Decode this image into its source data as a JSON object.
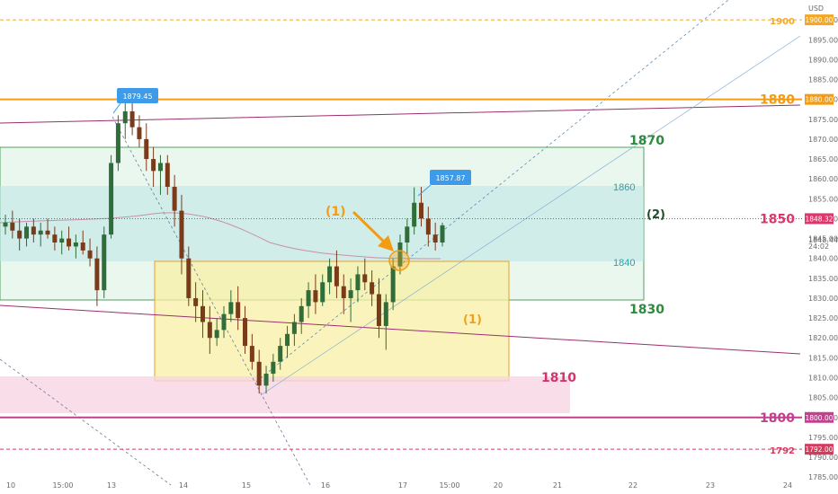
{
  "chart_data": {
    "type": "candlestick",
    "currency": "USD",
    "ylim": [
      1783,
      1905
    ],
    "y_ticks": [
      1785,
      1790,
      1795,
      1800,
      1805,
      1810,
      1815,
      1820,
      1825,
      1830,
      1835,
      1840,
      1845,
      1850,
      1855,
      1860,
      1865,
      1870,
      1875,
      1880,
      1885,
      1890,
      1895,
      1900
    ],
    "x_ticks": [
      "10",
      "15:00",
      "13",
      "14",
      "15",
      "16",
      "17",
      "15:00",
      "20",
      "21",
      "22",
      "23",
      "24"
    ],
    "current_price": "1848.32",
    "countdown": "24:02",
    "price_tag_muted": "1848.44",
    "callouts": [
      "1879.45",
      "1857.87"
    ],
    "levels": [
      {
        "value": 1900,
        "label": "1900",
        "tag": "1900.00",
        "color": "#f5a623",
        "style": "dashed"
      },
      {
        "value": 1880,
        "label": "1880",
        "tag": "1880.00",
        "color": "#f39c12",
        "style": "solid"
      },
      {
        "value": 1850,
        "label": "1850",
        "tag": "1848.32",
        "color": "#e0356b",
        "style": "dotted"
      },
      {
        "value": 1800,
        "label": "1800",
        "tag": "1800.00",
        "color": "#c2418f",
        "style": "solid"
      },
      {
        "value": 1792,
        "label": "1792",
        "tag": "1792.00",
        "color": "#d63a5c",
        "style": "dashed"
      }
    ],
    "zones": [
      {
        "name": "green-box",
        "top": 1870,
        "bottom": 1830,
        "label_top": "1870",
        "label_bottom": "1830",
        "tag": "(2)"
      },
      {
        "name": "teal-band",
        "top": 1860,
        "bottom": 1840,
        "label_top": "1860",
        "label_bottom": "1840"
      },
      {
        "name": "yellow-box",
        "top": 1840,
        "bottom": 1809,
        "tag": "(1)"
      },
      {
        "name": "pink-zone",
        "top": 1810,
        "bottom": 1800,
        "label": "1810"
      }
    ],
    "annotation": "(1)",
    "candles": [
      [
        1848,
        1851,
        1846,
        1849
      ],
      [
        1849,
        1852,
        1845,
        1847
      ],
      [
        1847,
        1850,
        1842,
        1845
      ],
      [
        1845,
        1849,
        1843,
        1848
      ],
      [
        1848,
        1850,
        1844,
        1846
      ],
      [
        1846,
        1849,
        1843,
        1847
      ],
      [
        1847,
        1850,
        1845,
        1846
      ],
      [
        1846,
        1848,
        1842,
        1844
      ],
      [
        1844,
        1847,
        1841,
        1845
      ],
      [
        1845,
        1848,
        1842,
        1843
      ],
      [
        1843,
        1846,
        1840,
        1844
      ],
      [
        1844,
        1847,
        1841,
        1842
      ],
      [
        1842,
        1845,
        1838,
        1840
      ],
      [
        1840,
        1843,
        1828,
        1832
      ],
      [
        1832,
        1848,
        1830,
        1846
      ],
      [
        1846,
        1866,
        1845,
        1864
      ],
      [
        1864,
        1876,
        1862,
        1874
      ],
      [
        1874,
        1879,
        1870,
        1877
      ],
      [
        1877,
        1879.45,
        1871,
        1873
      ],
      [
        1873,
        1876,
        1868,
        1870
      ],
      [
        1870,
        1874,
        1862,
        1865
      ],
      [
        1865,
        1868,
        1858,
        1862
      ],
      [
        1862,
        1866,
        1856,
        1864
      ],
      [
        1864,
        1866,
        1856,
        1858
      ],
      [
        1858,
        1861,
        1848,
        1852
      ],
      [
        1852,
        1856,
        1836,
        1840
      ],
      [
        1840,
        1843,
        1828,
        1830
      ],
      [
        1830,
        1834,
        1824,
        1828
      ],
      [
        1828,
        1832,
        1820,
        1824
      ],
      [
        1824,
        1828,
        1816,
        1820
      ],
      [
        1820,
        1825,
        1818,
        1822
      ],
      [
        1822,
        1828,
        1820,
        1826
      ],
      [
        1826,
        1832,
        1824,
        1829
      ],
      [
        1829,
        1833,
        1822,
        1825
      ],
      [
        1825,
        1828,
        1816,
        1818
      ],
      [
        1818,
        1821,
        1812,
        1814
      ],
      [
        1814,
        1817,
        1806,
        1808
      ],
      [
        1808,
        1813,
        1806,
        1811
      ],
      [
        1811,
        1816,
        1809,
        1814
      ],
      [
        1814,
        1820,
        1812,
        1818
      ],
      [
        1818,
        1823,
        1815,
        1821
      ],
      [
        1821,
        1826,
        1818,
        1824
      ],
      [
        1824,
        1830,
        1821,
        1828
      ],
      [
        1828,
        1834,
        1825,
        1832
      ],
      [
        1832,
        1836,
        1826,
        1829
      ],
      [
        1829,
        1836,
        1828,
        1834
      ],
      [
        1834,
        1840,
        1831,
        1838
      ],
      [
        1838,
        1842,
        1830,
        1833
      ],
      [
        1833,
        1836,
        1826,
        1830
      ],
      [
        1830,
        1835,
        1824,
        1832
      ],
      [
        1832,
        1838,
        1829,
        1836
      ],
      [
        1836,
        1840,
        1832,
        1834
      ],
      [
        1834,
        1837,
        1828,
        1831
      ],
      [
        1831,
        1835,
        1820,
        1823
      ],
      [
        1823,
        1831,
        1817,
        1829
      ],
      [
        1829,
        1840,
        1827,
        1838
      ],
      [
        1838,
        1846,
        1836,
        1844
      ],
      [
        1844,
        1850,
        1841,
        1848
      ],
      [
        1848,
        1857.87,
        1846,
        1854
      ],
      [
        1854,
        1858,
        1848,
        1850
      ],
      [
        1850,
        1853,
        1843,
        1846
      ],
      [
        1846,
        1849,
        1842,
        1844
      ],
      [
        1844,
        1849,
        1843,
        1848.32
      ]
    ]
  }
}
